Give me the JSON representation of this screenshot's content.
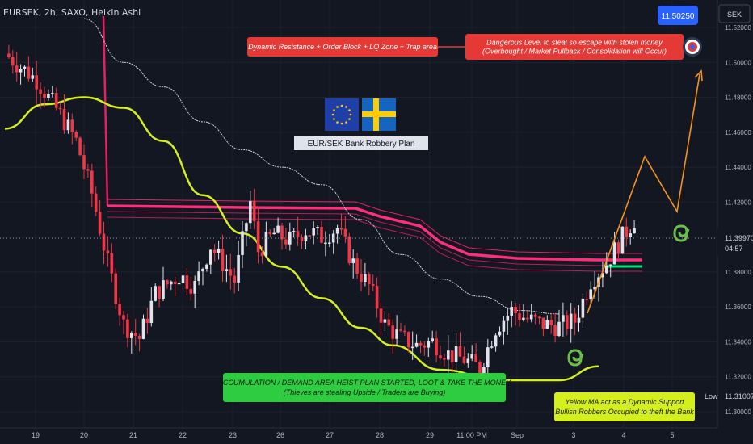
{
  "header": {
    "symbol_line": "EURSEK, 2h, SAXO, Heikin Ashi"
  },
  "price_scale": {
    "currency": "SEK",
    "ticks": [
      "11.52000",
      "11.50000",
      "11.48000",
      "11.46000",
      "11.44000",
      "11.42000",
      "11.40000",
      "11.38000",
      "11.36000",
      "11.34000",
      "11.32000",
      "11.30000"
    ],
    "current_price": "11.39970",
    "countdown": "04:57",
    "target_price": "11.50250",
    "low_label": "Low",
    "low_price": "11.31007"
  },
  "time_axis": {
    "labels": [
      "19",
      "20",
      "21",
      "22",
      "23",
      "26",
      "27",
      "28",
      "29",
      "11:00 PM",
      "Sep",
      "3",
      "4",
      "5"
    ]
  },
  "annotations": {
    "resistance": "Dynamic Resistance + Order Block + LQ Zone + Trap area",
    "danger_line1": "Dangerous Level to steal so escape with stolen money",
    "danger_line2": "(Overbought / Market Pullback / Consolidation will Occur)",
    "plan_title": "EUR/SEK Bank Robbery Plan",
    "accum_line1": "ACCUMULATION / DEMAND AREA HEIST PLAN STARTED, LOOT & TAKE THE MONEY",
    "accum_line2": "(Thieves are stealing Upside / Traders are Buying)",
    "ma_line1": "Yellow MA act as a Dynamic Support",
    "ma_line2": "Bullish Robbers Occupied to theft the Bank"
  },
  "chart_data": {
    "type": "candlestick",
    "symbol": "EURSEK",
    "interval": "2h",
    "chart_style": "Heikin Ashi",
    "ylim": [
      11.295,
      11.525
    ],
    "current_price": 11.3997,
    "target_price": 11.5025,
    "low_price": 11.31007,
    "resistance_band": [
      11.382,
      11.414
    ],
    "colors": {
      "up": "#e0e3eb",
      "down": "#f23645",
      "ma_yellow": "#d4ef1e",
      "band": "#e91e63",
      "projection": "#f7931a",
      "target_box": "#2962ff",
      "support": "#00e676"
    },
    "series": [
      {
        "name": "Yellow MA",
        "values_x_index": [
          0,
          10,
          20,
          30,
          40,
          50,
          60,
          70,
          80,
          90,
          98,
          110,
          125,
          140,
          150
        ],
        "values": [
          11.462,
          11.476,
          11.48,
          11.474,
          11.455,
          11.424,
          11.402,
          11.383,
          11.365,
          11.348,
          11.338,
          11.324,
          11.318,
          11.318,
          11.326
        ]
      },
      {
        "name": "White MA",
        "values_x_index": [
          20,
          30,
          40,
          50,
          60,
          70,
          80,
          90,
          100,
          110,
          120,
          130,
          140
        ],
        "values": [
          11.525,
          11.5,
          11.486,
          11.466,
          11.45,
          11.44,
          11.43,
          11.41,
          11.39,
          11.376,
          11.366,
          11.358,
          11.356
        ]
      }
    ]
  }
}
